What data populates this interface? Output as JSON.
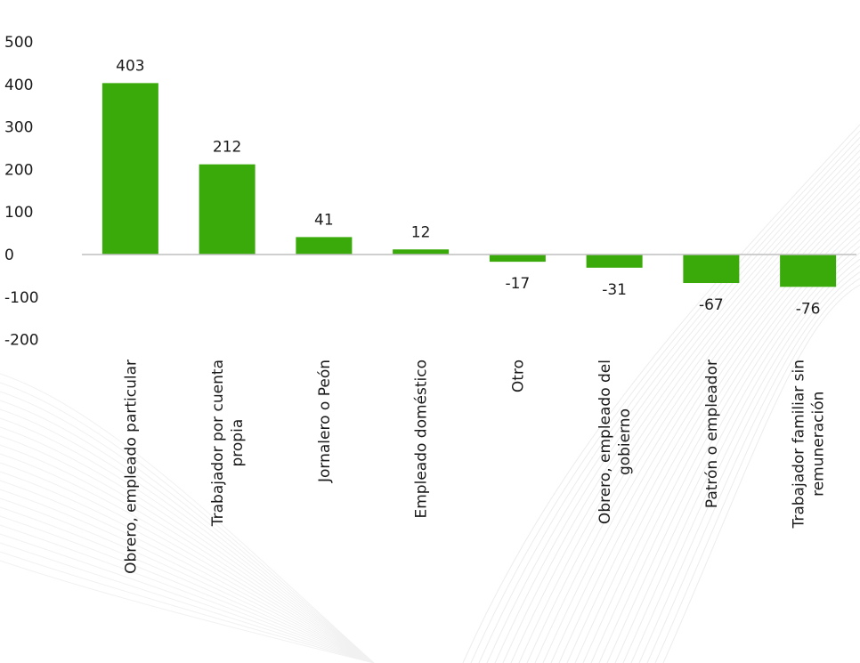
{
  "chart_data": {
    "type": "bar",
    "categories": [
      [
        "Obrero, empleado particular"
      ],
      [
        "Trabajador por cuenta",
        "propia"
      ],
      [
        "Jornalero o Peón"
      ],
      [
        "Empleado doméstico"
      ],
      [
        "Otro"
      ],
      [
        "Obrero, empleado del",
        "gobierno"
      ],
      [
        "Patrón o empleador"
      ],
      [
        "Trabajador familiar sin",
        "remuneración"
      ]
    ],
    "values": [
      403,
      212,
      41,
      12,
      -17,
      -31,
      -67,
      -76
    ],
    "data_labels": [
      "403",
      "212",
      "41",
      "12",
      "-17",
      "-31",
      "-67",
      "-76"
    ],
    "yticks": [
      "500",
      "400",
      "300",
      "200",
      "100",
      "0",
      "-100",
      "-200"
    ],
    "ytick_values": [
      500,
      400,
      300,
      200,
      100,
      0,
      -100,
      -200
    ],
    "ylim": [
      -200,
      500
    ],
    "grid": false,
    "legend": "none",
    "bar_color": "#3aaa0a",
    "axis_color": "#bfbfbf"
  }
}
